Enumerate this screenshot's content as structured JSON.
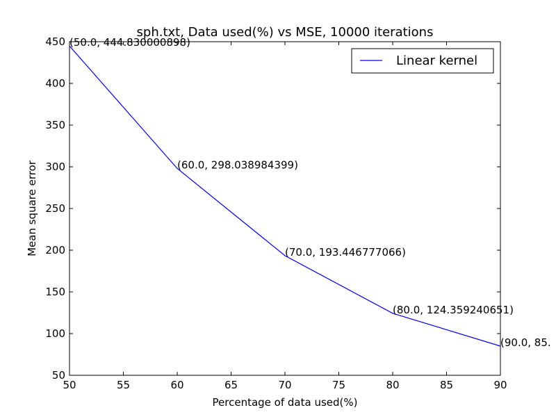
{
  "chart_data": {
    "type": "line",
    "title": "sph.txt, Data used(%) vs MSE, 10000 iterations",
    "xlabel": "Percentage of data used(%)",
    "ylabel": "Mean square error",
    "xlim": [
      50,
      90
    ],
    "ylim": [
      50,
      450
    ],
    "xticks": [
      "50",
      "55",
      "60",
      "65",
      "70",
      "75",
      "80",
      "85",
      "90"
    ],
    "yticks": [
      "50",
      "100",
      "150",
      "200",
      "250",
      "300",
      "350",
      "400",
      "450"
    ],
    "grid": false,
    "legend_position": "top-right",
    "series": [
      {
        "name": "Linear kernel",
        "color": "#0000ff",
        "x": [
          50.0,
          60.0,
          70.0,
          80.0,
          90.0
        ],
        "y": [
          444.830000898,
          298.038984399,
          193.446777066,
          124.359240651,
          85.0
        ]
      }
    ],
    "annotations": [
      "(50.0, 444.830000898)",
      "(60.0, 298.038984399)",
      "(70.0, 193.446777066)",
      "(80.0, 124.359240651)",
      "(90.0, 85."
    ]
  }
}
